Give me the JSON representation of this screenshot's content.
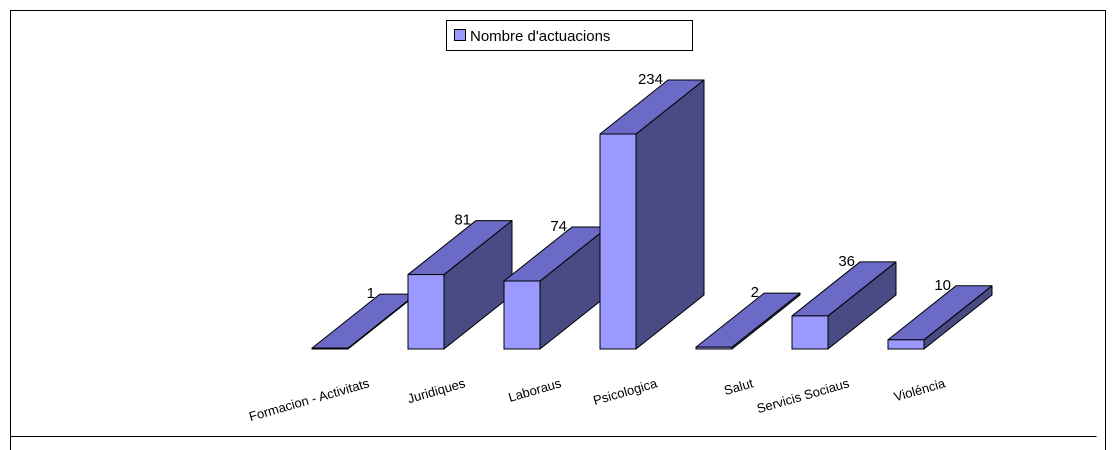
{
  "chart_data": {
    "type": "bar",
    "categories": [
      "Formacion - Activitats",
      "Juridiques",
      "Laboraus",
      "Psicologica",
      "Salut",
      "Servicis Sociaus",
      "Violéncia"
    ],
    "series": [
      {
        "name": "Nombre d'actuacions",
        "values": [
          1,
          81,
          74,
          234,
          2,
          36,
          10
        ]
      }
    ],
    "ylim": [
      0,
      234
    ],
    "grid": false,
    "legend": "top-center",
    "three_d": true
  },
  "colors": {
    "front": "#9999FF",
    "top": "#6B6BC7",
    "side": "#4A4A84",
    "border": "#000000"
  }
}
